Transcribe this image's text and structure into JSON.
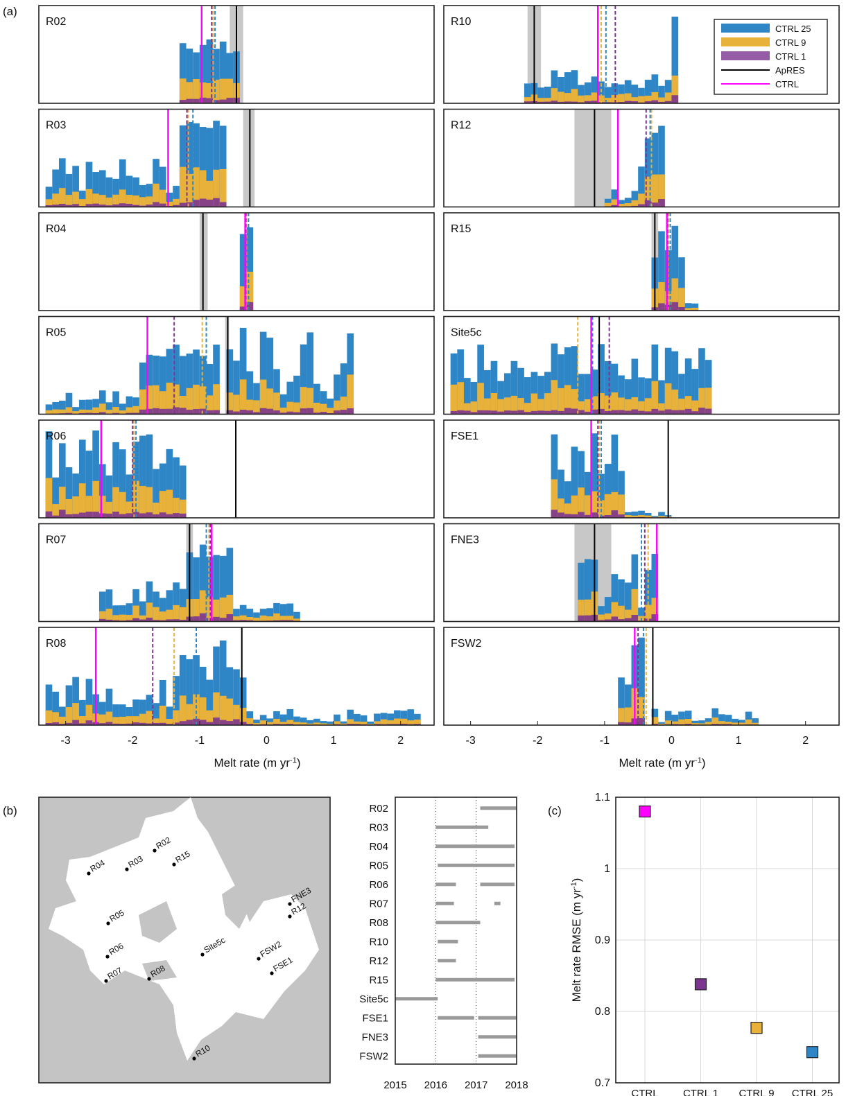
{
  "panel_labels": {
    "a": "(a)",
    "b": "(b)",
    "c": "(c)"
  },
  "colors": {
    "ctrl25": "#2f86c7",
    "ctrl9": "#e8b13a",
    "ctrl1": "#7b3590",
    "apres": "#000000",
    "ctrl": "#ff00ff",
    "apres_band": "#c8c8c8",
    "land": "#c4c4c4",
    "ice_shelf": "#ffffff",
    "bar": "#9a9a9a"
  },
  "chart_data": [
    {
      "type": "bar",
      "panel": "a",
      "xlabel": "Melt rate (m yr",
      "xlabel_sup": "-1",
      "xlabel_tail": ")",
      "xlim": [
        -3.4,
        2.5
      ],
      "xticks": [
        "-3",
        "-2",
        "-1",
        "0",
        "1",
        "2"
      ],
      "xtick_values": [
        -3,
        -2,
        -1,
        0,
        1,
        2
      ],
      "legend": {
        "position": "top-right of R10 panel",
        "entries": [
          {
            "label": "CTRL 25",
            "kind": "patch",
            "color": "#2f86c7"
          },
          {
            "label": "CTRL 9",
            "kind": "patch",
            "color": "#e8b13a"
          },
          {
            "label": "CTRL 1",
            "kind": "patch",
            "color": "#7b3590"
          },
          {
            "label": "ApRES",
            "kind": "line",
            "color": "#000000"
          },
          {
            "label": "CTRL",
            "kind": "line",
            "color": "#ff00ff"
          }
        ]
      },
      "sites": [
        {
          "name": "R02",
          "apres": -0.45,
          "band": [
            -0.55,
            -0.35
          ],
          "ctrl": -0.97,
          "c25": -0.77,
          "c9": -0.8,
          "c1": -0.82,
          "hist": [
            [
              -1.3,
              -0.4,
              0.55,
              0.8
            ]
          ]
        },
        {
          "name": "R03",
          "apres": -0.25,
          "band": [
            -0.35,
            -0.18
          ],
          "ctrl": -1.47,
          "c25": -1.1,
          "c9": -1.17,
          "c1": -1.19,
          "hist": [
            [
              -3.3,
              -0.8,
              0.15,
              0.55
            ],
            [
              -1.25,
              -0.55,
              0.88,
              1.0
            ]
          ]
        },
        {
          "name": "R04",
          "apres": -0.95,
          "band": [
            -1.0,
            -0.88
          ],
          "ctrl": -0.32,
          "c25": -0.27,
          "c9": -0.3,
          "c1": -0.31,
          "hist": [
            [
              -0.38,
              -0.22,
              0.85,
              1.0
            ]
          ]
        },
        {
          "name": "R05",
          "apres": -0.58,
          "band": [
            -0.62,
            -0.56
          ],
          "ctrl": -1.78,
          "c25": -0.9,
          "c9": -0.96,
          "c1": -1.38,
          "hist": [
            [
              -3.3,
              -1.8,
              0.08,
              0.28
            ],
            [
              -1.9,
              -0.7,
              0.55,
              0.78
            ],
            [
              -0.6,
              1.3,
              0.15,
              1.0
            ]
          ]
        },
        {
          "name": "R06",
          "apres": -0.46,
          "band": [
            -0.48,
            -0.44
          ],
          "ctrl": -2.47,
          "c25": -1.95,
          "c9": -1.98,
          "c1": -2.0,
          "hist": [
            [
              -3.3,
              -1.2,
              0.4,
              1.0
            ]
          ]
        },
        {
          "name": "R07",
          "apres": -1.15,
          "band": [
            -1.2,
            -1.1
          ],
          "ctrl": -0.82,
          "c25": -0.9,
          "c9": -0.86,
          "c1": -0.84,
          "hist": [
            [
              -2.5,
              -1.2,
              0.18,
              0.45
            ],
            [
              -1.2,
              -0.45,
              0.7,
              1.0
            ],
            [
              -0.45,
              0.5,
              0.05,
              0.25
            ]
          ]
        },
        {
          "name": "R08",
          "apres": -0.37,
          "band": [
            -0.39,
            -0.35
          ],
          "ctrl": -2.55,
          "c25": -1.05,
          "c9": -1.38,
          "c1": -1.7,
          "hist": [
            [
              -3.3,
              -0.3,
              0.2,
              0.55
            ],
            [
              -1.3,
              -0.3,
              0.5,
              1.0
            ],
            [
              -0.3,
              2.3,
              0.03,
              0.18
            ]
          ]
        },
        {
          "name": "R10",
          "apres": -2.05,
          "band": [
            -2.15,
            -1.95
          ],
          "ctrl": -1.1,
          "c25": -0.98,
          "c9": -1.05,
          "c1": -0.84,
          "hist": [
            [
              -2.2,
              0.1,
              0.15,
              0.42
            ],
            [
              0.05,
              0.1,
              0.9,
              1.0
            ]
          ]
        },
        {
          "name": "R12",
          "apres": -1.15,
          "band": [
            -1.45,
            -0.9
          ],
          "ctrl": -0.8,
          "c25": -0.32,
          "c9": -0.3,
          "c1": -0.38,
          "hist": [
            [
              -1.0,
              -0.45,
              0.05,
              0.2
            ],
            [
              -0.5,
              -0.05,
              0.35,
              1.0
            ]
          ]
        },
        {
          "name": "R15",
          "apres": -0.25,
          "band": [
            -0.3,
            -0.2
          ],
          "ctrl": -0.07,
          "c25": -0.02,
          "c9": -0.05,
          "c1": -0.06,
          "hist": [
            [
              -0.25,
              0.2,
              0.3,
              1.0
            ],
            [
              0.2,
              0.45,
              0.03,
              0.15
            ]
          ]
        },
        {
          "name": "Site5c",
          "apres": -1.08,
          "band": [
            -1.1,
            -1.06
          ],
          "ctrl": -1.2,
          "c25": -1.18,
          "c9": -1.4,
          "c1": -0.93,
          "hist": [
            [
              -3.3,
              0.6,
              0.35,
              0.8
            ]
          ]
        },
        {
          "name": "FSE1",
          "apres": -0.05,
          "band": [
            -0.07,
            -0.03
          ],
          "ctrl": -1.2,
          "c25": -1.05,
          "c9": -1.08,
          "c1": -1.1,
          "hist": [
            [
              -1.8,
              -0.7,
              0.4,
              1.0
            ],
            [
              -0.7,
              0.0,
              0.02,
              0.08
            ]
          ]
        },
        {
          "name": "FNE3",
          "apres": -1.15,
          "band": [
            -1.45,
            -0.9
          ],
          "ctrl": -0.22,
          "c25": -0.45,
          "c9": -0.35,
          "c1": -0.4,
          "hist": [
            [
              -1.4,
              -0.15,
              0.1,
              0.9
            ]
          ]
        },
        {
          "name": "FSW2",
          "apres": -0.28,
          "band": [
            -0.3,
            -0.26
          ],
          "ctrl": -0.55,
          "c25": -0.42,
          "c9": -0.38,
          "c1": -0.5,
          "hist": [
            [
              -0.8,
              -0.35,
              0.45,
              1.0
            ],
            [
              -0.3,
              1.3,
              0.03,
              0.2
            ]
          ]
        }
      ]
    },
    {
      "type": "scatter",
      "panel": "c",
      "ylabel": "Melt rate RMSE (m yr",
      "ylabel_sup": "-1",
      "ylabel_tail": ")",
      "ylim": [
        0.7,
        1.1
      ],
      "yticks": [
        "0.7",
        "0.8",
        "0.9",
        "1",
        "1.1"
      ],
      "ytick_values": [
        0.7,
        0.8,
        0.9,
        1.0,
        1.1
      ],
      "categories": [
        "CTRL",
        "CTRL 1",
        "CTRL 9",
        "CTRL 25"
      ],
      "values": [
        1.08,
        0.838,
        0.777,
        0.743
      ],
      "grid": true
    },
    {
      "type": "bar",
      "panel": "b-timeline",
      "orientation": "horizontal",
      "xlim": [
        2015,
        2018
      ],
      "xticks": [
        "2015",
        "2016",
        "2017",
        "2018"
      ],
      "xtick_values": [
        2015,
        2016,
        2017,
        2018
      ],
      "rows": [
        {
          "site": "R02",
          "spans": [
            [
              2017.1,
              2018.0
            ]
          ]
        },
        {
          "site": "R03",
          "spans": [
            [
              2016.0,
              2017.3
            ]
          ]
        },
        {
          "site": "R04",
          "spans": [
            [
              2016.0,
              2017.95
            ]
          ]
        },
        {
          "site": "R05",
          "spans": [
            [
              2016.05,
              2017.95
            ]
          ]
        },
        {
          "site": "R06",
          "spans": [
            [
              2016.0,
              2016.5
            ],
            [
              2017.1,
              2017.95
            ]
          ]
        },
        {
          "site": "R07",
          "spans": [
            [
              2016.0,
              2016.45
            ],
            [
              2017.45,
              2017.6
            ]
          ]
        },
        {
          "site": "R08",
          "spans": [
            [
              2016.0,
              2017.1
            ]
          ]
        },
        {
          "site": "R10",
          "spans": [
            [
              2016.05,
              2016.55
            ]
          ]
        },
        {
          "site": "R12",
          "spans": [
            [
              2016.05,
              2016.5
            ]
          ]
        },
        {
          "site": "R15",
          "spans": [
            [
              2016.0,
              2017.95
            ]
          ]
        },
        {
          "site": "Site5c",
          "spans": [
            [
              2015.0,
              2016.05
            ]
          ]
        },
        {
          "site": "FSE1",
          "spans": [
            [
              2016.05,
              2016.95
            ],
            [
              2017.05,
              2018.0
            ]
          ]
        },
        {
          "site": "FNE3",
          "spans": [
            [
              2017.05,
              2018.0
            ]
          ]
        },
        {
          "site": "FSW2",
          "spans": [
            [
              2017.05,
              2018.0
            ]
          ]
        }
      ]
    }
  ],
  "map": {
    "sites": [
      "R04",
      "R03",
      "R02",
      "R15",
      "R05",
      "R06",
      "R07",
      "R08",
      "Site5c",
      "FSW2",
      "FSE1",
      "FNE3",
      "R12",
      "R10"
    ]
  }
}
